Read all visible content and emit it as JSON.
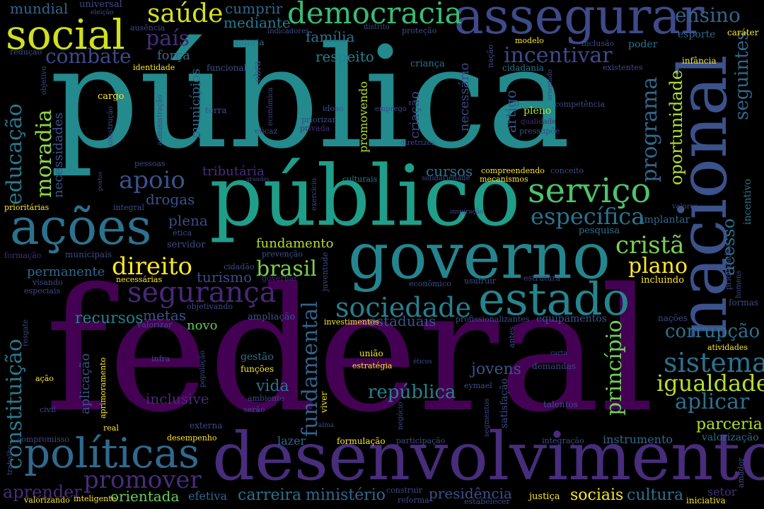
{
  "words": [
    {
      "text": "federal",
      "color": "#440154"
    },
    {
      "text": "pública",
      "color": "#238a8d"
    },
    {
      "text": "público",
      "color": "#1f9e89"
    },
    {
      "text": "desenvolvimento",
      "color": "#472d7b"
    },
    {
      "text": "nacional",
      "color": "#3b528b"
    },
    {
      "text": "governo",
      "color": "#25858e"
    },
    {
      "text": "assegurar",
      "color": "#3e4a89"
    },
    {
      "text": "ações",
      "color": "#2c728e"
    },
    {
      "text": "estado",
      "color": "#25848e"
    },
    {
      "text": "social",
      "color": "#d0e11c"
    },
    {
      "text": "políticas",
      "color": "#31688e"
    },
    {
      "text": "democracia",
      "color": "#3bbb75"
    },
    {
      "text": "serviço",
      "color": "#4ec36b"
    },
    {
      "text": "segurança",
      "color": "#482878"
    },
    {
      "text": "sociedade",
      "color": "#277f8e"
    },
    {
      "text": "sistema",
      "color": "#2c728e"
    },
    {
      "text": "igualdade",
      "color": "#b5de2b"
    },
    {
      "text": "constituição",
      "color": "#2a788e"
    },
    {
      "text": "educação",
      "color": "#2a788e"
    },
    {
      "text": "saúde",
      "color": "#d8e219"
    },
    {
      "text": "direito",
      "color": "#fde725"
    },
    {
      "text": "cristã",
      "color": "#7ad151"
    },
    {
      "text": "apoio",
      "color": "#3b528b"
    },
    {
      "text": "promover",
      "color": "#472d7b"
    },
    {
      "text": "fundamental",
      "color": "#33638d"
    },
    {
      "text": "específica",
      "color": "#2c728e"
    },
    {
      "text": "programa",
      "color": "#31688e"
    },
    {
      "text": "aplicar",
      "color": "#2c728e"
    },
    {
      "text": "combate",
      "color": "#3e4a89"
    },
    {
      "text": "incentivar",
      "color": "#3e4a89"
    },
    {
      "text": "brasil",
      "color": "#7ad151"
    },
    {
      "text": "ensino",
      "color": "#33638d"
    },
    {
      "text": "princípio",
      "color": "#6ece58"
    },
    {
      "text": "plano",
      "color": "#fde725"
    },
    {
      "text": "moradia",
      "color": "#8fd744"
    },
    {
      "text": "seguintes",
      "color": "#31688e"
    },
    {
      "text": "país",
      "color": "#472d7b"
    },
    {
      "text": "acesso",
      "color": "#2c728e"
    },
    {
      "text": "oportunidade",
      "color": "#b5de2b"
    },
    {
      "text": "corrupção",
      "color": "#2c728e"
    },
    {
      "text": "república",
      "color": "#26828e"
    },
    {
      "text": "aprender",
      "color": "#472d7b"
    },
    {
      "text": "cultura",
      "color": "#2c728e"
    },
    {
      "text": "parceria",
      "color": "#b5de2b"
    },
    {
      "text": "sociais",
      "color": "#fde725"
    },
    {
      "text": "carreira",
      "color": "#2c728e"
    },
    {
      "text": "ministério",
      "color": "#31688e"
    },
    {
      "text": "presidência",
      "color": "#3b528b"
    },
    {
      "text": "orientada",
      "color": "#6ece58"
    },
    {
      "text": "recursos",
      "color": "#26828e"
    },
    {
      "text": "estaduais",
      "color": "#3b528b"
    },
    {
      "text": "metas",
      "color": "#3b528b"
    },
    {
      "text": "vida",
      "color": "#2c728e"
    },
    {
      "text": "jovens",
      "color": "#3b528b"
    },
    {
      "text": "inclusive",
      "color": "#482878"
    },
    {
      "text": "turismo",
      "color": "#3e4a89"
    },
    {
      "text": "drogas",
      "color": "#3b528b"
    },
    {
      "text": "plena",
      "color": "#3e4a89"
    },
    {
      "text": "tributária",
      "color": "#472d7b"
    },
    {
      "text": "permanente",
      "color": "#31688e"
    },
    {
      "text": "fundamento",
      "color": "#b5de2b"
    },
    {
      "text": "respeito",
      "color": "#26828e"
    },
    {
      "text": "família",
      "color": "#2c728e"
    },
    {
      "text": "mediante",
      "color": "#2a788e"
    },
    {
      "text": "cumprir",
      "color": "#31688e"
    },
    {
      "text": "mundial",
      "color": "#31688e"
    },
    {
      "text": "força",
      "color": "#31688e"
    },
    {
      "text": "cursos",
      "color": "#2c728e"
    },
    {
      "text": "novo",
      "color": "#5ec962"
    },
    {
      "text": "lazer",
      "color": "#31688e"
    },
    {
      "text": "efetiva",
      "color": "#31688e"
    },
    {
      "text": "aplicação",
      "color": "#3b528b"
    },
    {
      "text": "instrumento",
      "color": "#31688e"
    },
    {
      "text": "valorização",
      "color": "#31688e"
    },
    {
      "text": "artigo",
      "color": "#3b528b"
    },
    {
      "text": "pleno",
      "color": "#b5de2b"
    },
    {
      "text": "necessário",
      "color": "#3e4a89"
    },
    {
      "text": "municípios",
      "color": "#31688e"
    },
    {
      "text": "necessidades",
      "color": "#3b528b"
    },
    {
      "text": "promovendo",
      "color": "#b5de2b"
    },
    {
      "text": "criação",
      "color": "#3e4a89"
    },
    {
      "text": "incentivo",
      "color": "#2a788e"
    },
    {
      "text": "implantar",
      "color": "#31688e"
    },
    {
      "text": "pesquisa",
      "color": "#2c728e"
    },
    {
      "text": "infância",
      "color": "#fde725"
    },
    {
      "text": "esporte",
      "color": "#31688e"
    },
    {
      "text": "caráter",
      "color": "#fde725"
    },
    {
      "text": "poder",
      "color": "#2a788e"
    },
    {
      "text": "cidadania",
      "color": "#2c728e"
    },
    {
      "text": "criança",
      "color": "#2c728e"
    },
    {
      "text": "funcional",
      "color": "#3b528b"
    },
    {
      "text": "autoria",
      "color": "#2c728e"
    },
    {
      "text": "identidade",
      "color": "#fde725"
    },
    {
      "text": "cargo",
      "color": "#fde725"
    },
    {
      "text": "obra",
      "color": "#3b528b"
    },
    {
      "text": "terra",
      "color": "#3b528b"
    },
    {
      "text": "idoso",
      "color": "#3b528b"
    },
    {
      "text": "priorizar",
      "color": "#3e4a89"
    },
    {
      "text": "eficaz",
      "color": "#3e4a89"
    },
    {
      "text": "privada",
      "color": "#472d7b"
    },
    {
      "text": "emprego",
      "color": "#3e4a89"
    },
    {
      "text": "competência",
      "color": "#3e4a89"
    },
    {
      "text": "qualidade",
      "color": "#472d7b"
    },
    {
      "text": "pressupõe",
      "color": "#3e4a89"
    },
    {
      "text": "diretrizes",
      "color": "#3e4a89"
    },
    {
      "text": "compreendendo",
      "color": "#fde725"
    },
    {
      "text": "conceito",
      "color": "#3e4a89"
    },
    {
      "text": "mecanismos",
      "color": "#fde725"
    },
    {
      "text": "solidariedade",
      "color": "#3e4a89"
    },
    {
      "text": "culturais",
      "color": "#2a788e"
    },
    {
      "text": "integral",
      "color": "#3e4a89"
    },
    {
      "text": "pessoas",
      "color": "#3e4a89"
    },
    {
      "text": "prioritárias",
      "color": "#fde725"
    },
    {
      "text": "ética",
      "color": "#3e4a89"
    },
    {
      "text": "servidor",
      "color": "#3e4a89"
    },
    {
      "text": "municipais",
      "color": "#3e4a89"
    },
    {
      "text": "formação",
      "color": "#472d7b"
    },
    {
      "text": "prevenção",
      "color": "#3b528b"
    },
    {
      "text": "cidadão",
      "color": "#3e4a89"
    },
    {
      "text": "visando",
      "color": "#3e4a89"
    },
    {
      "text": "especiais",
      "color": "#3e4a89"
    },
    {
      "text": "necessárias",
      "color": "#fde725"
    },
    {
      "text": "governar",
      "color": "#472d7b"
    },
    {
      "text": "juventude",
      "color": "#3e4a89"
    },
    {
      "text": "usufruir",
      "color": "#3b528b"
    },
    {
      "text": "econômico",
      "color": "#3b528b"
    },
    {
      "text": "estrutura",
      "color": "#3e4a89"
    },
    {
      "text": "incluindo",
      "color": "#fde725"
    },
    {
      "text": "prioridades",
      "color": "#3e4a89"
    },
    {
      "text": "formas",
      "color": "#3e4a89"
    },
    {
      "text": "objetivando",
      "color": "#3e4a89"
    },
    {
      "text": "ampliação",
      "color": "#3b528b"
    },
    {
      "text": "valorizar",
      "color": "#3e4a89"
    },
    {
      "text": "investimentos",
      "color": "#fde725"
    },
    {
      "text": "profissionalizantes",
      "color": "#3e4a89"
    },
    {
      "text": "equipamentos",
      "color": "#3b528b"
    },
    {
      "text": "nações",
      "color": "#3e4a89"
    },
    {
      "text": "atividades",
      "color": "#fde725"
    },
    {
      "text": "resgate",
      "color": "#3e4a89"
    },
    {
      "text": "aprimoramento",
      "color": "#fde725"
    },
    {
      "text": "ação",
      "color": "#fde725"
    },
    {
      "text": "infra",
      "color": "#3e4a89"
    },
    {
      "text": "população",
      "color": "#3e4a89"
    },
    {
      "text": "gestão",
      "color": "#2c728e"
    },
    {
      "text": "funções",
      "color": "#fde725"
    },
    {
      "text": "ambiente",
      "color": "#3e4a89"
    },
    {
      "text": "serão",
      "color": "#3e4a89"
    },
    {
      "text": "viver",
      "color": "#fde725"
    },
    {
      "text": "união",
      "color": "#fde725"
    },
    {
      "text": "estratégia",
      "color": "#fde725"
    },
    {
      "text": "negócio",
      "color": "#3e4a89"
    },
    {
      "text": "éticos",
      "color": "#3e4a89"
    },
    {
      "text": "eymael",
      "color": "#3e4a89"
    },
    {
      "text": "segmentos",
      "color": "#3e4a89"
    },
    {
      "text": "satisfação",
      "color": "#3e4a89"
    },
    {
      "text": "antes",
      "color": "#3e4a89"
    },
    {
      "text": "carta",
      "color": "#3e4a89"
    },
    {
      "text": "demandas",
      "color": "#3e4a89"
    },
    {
      "text": "talentos",
      "color": "#3e4a89"
    },
    {
      "text": "civil",
      "color": "#3e4a89"
    },
    {
      "text": "real",
      "color": "#fde725"
    },
    {
      "text": "externa",
      "color": "#3e4a89"
    },
    {
      "text": "alma",
      "color": "#3e4a89"
    },
    {
      "text": "compromisso",
      "color": "#3e4a89"
    },
    {
      "text": "desempenho",
      "color": "#fde725"
    },
    {
      "text": "formulação",
      "color": "#fde725"
    },
    {
      "text": "participação",
      "color": "#3e4a89"
    },
    {
      "text": "integração",
      "color": "#3e4a89"
    },
    {
      "text": "trabalho",
      "color": "#3e4a89"
    },
    {
      "text": "amador",
      "color": "#3e4a89"
    },
    {
      "text": "valorizando",
      "color": "#fde725"
    },
    {
      "text": "inteligente",
      "color": "#fde725"
    },
    {
      "text": "construir",
      "color": "#3e4a89"
    },
    {
      "text": "reforma",
      "color": "#3e4a89"
    },
    {
      "text": "estabelecer",
      "color": "#3e4a89"
    },
    {
      "text": "justiça",
      "color": "#fde725"
    },
    {
      "text": "setor",
      "color": "#472d7b"
    },
    {
      "text": "iniciativa",
      "color": "#fde725"
    },
    {
      "text": "universal",
      "color": "#3e4a89"
    },
    {
      "text": "eleição",
      "color": "#3e4a89"
    },
    {
      "text": "ausência",
      "color": "#3e4a89"
    },
    {
      "text": "indicadores",
      "color": "#3e4a89"
    },
    {
      "text": "redução",
      "color": "#3e4a89"
    },
    {
      "text": "distrito",
      "color": "#3e4a89"
    },
    {
      "text": "proteção",
      "color": "#3e4a89"
    },
    {
      "text": "modelo",
      "color": "#fde725"
    },
    {
      "text": "inclusão",
      "color": "#3e4a89"
    },
    {
      "text": "nação",
      "color": "#3e4a89"
    },
    {
      "text": "existentes",
      "color": "#3e4a89"
    },
    {
      "text": "orientado",
      "color": "#3e4a89"
    },
    {
      "text": "objetivo",
      "color": "#3e4a89"
    },
    {
      "text": "construção",
      "color": "#3e4a89"
    },
    {
      "text": "administração",
      "color": "#3e4a89"
    },
    {
      "text": "econômica",
      "color": "#3e4a89"
    },
    {
      "text": "exercício",
      "color": "#3e4a89"
    },
    {
      "text": "inspiração",
      "color": "#3e4a89"
    },
    {
      "text": "valores",
      "color": "#3e4a89"
    },
    {
      "text": "grandes",
      "color": "#3e4a89"
    },
    {
      "text": "pontos",
      "color": "#3e4a89"
    },
    {
      "text": "homens",
      "color": "#3e4a89"
    }
  ]
}
